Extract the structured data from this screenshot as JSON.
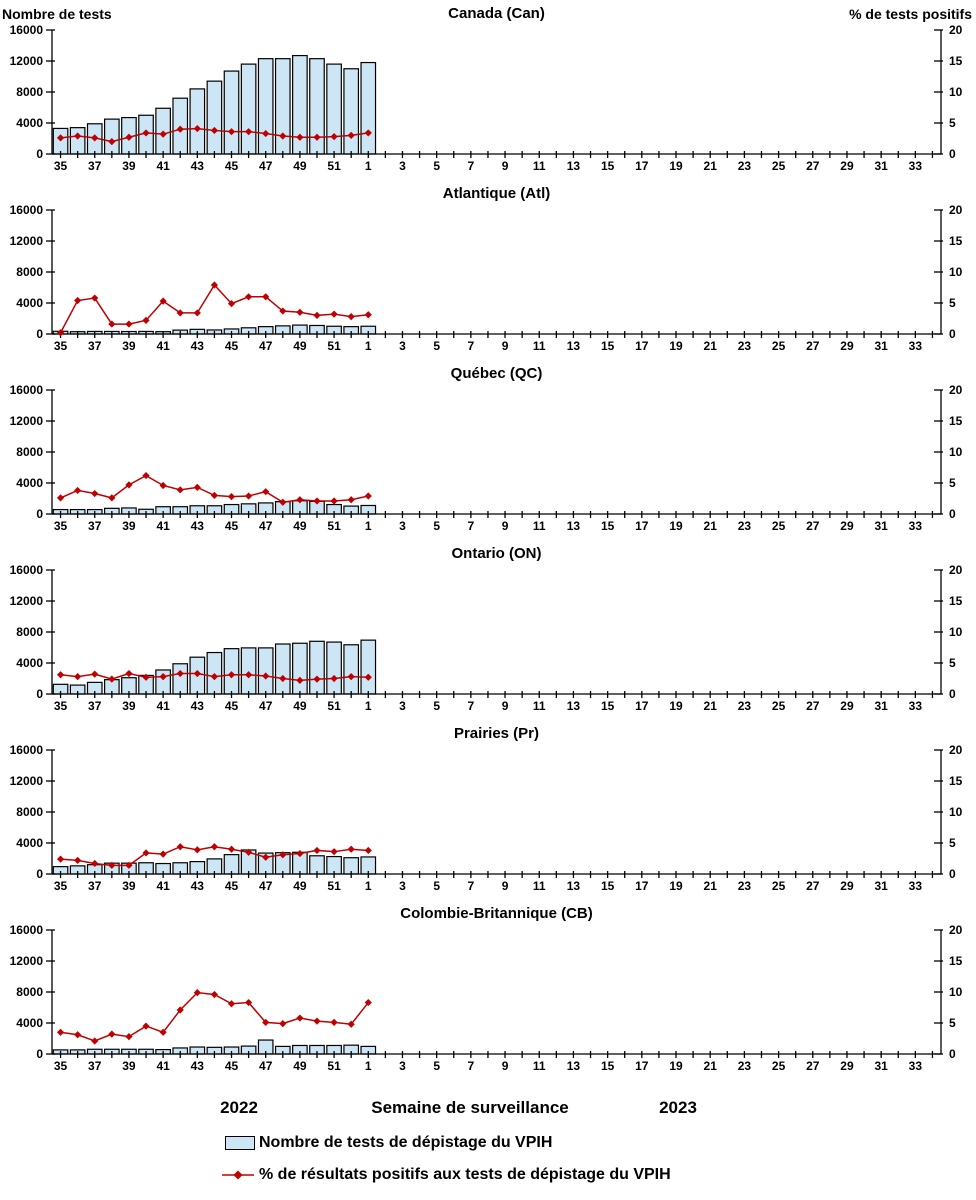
{
  "page": {
    "left_axis_header": "Nombre de tests",
    "right_axis_header": "% de tests positifs"
  },
  "footer": {
    "year_left": "2022",
    "x_axis_title": "Semaine de surveillance",
    "year_right": "2023"
  },
  "legend": {
    "bar_label": "Nombre de tests de dépistage du VPIH",
    "line_label": "% de résultats positifs aux tests de dépistage du VPIH"
  },
  "colors": {
    "bar_fill": "#CDE6F6",
    "bar_stroke": "#000000",
    "line": "#C00000",
    "axis": "#000000"
  },
  "axes": {
    "left_ticks": [
      0,
      4000,
      8000,
      12000,
      16000
    ],
    "right_ticks": [
      0,
      5,
      10,
      15,
      20
    ],
    "left_ylim": [
      0,
      16000
    ],
    "right_ylim": [
      0,
      20
    ],
    "weeks": [
      35,
      36,
      37,
      38,
      39,
      40,
      41,
      42,
      43,
      44,
      45,
      46,
      47,
      48,
      49,
      50,
      51,
      52,
      1,
      2,
      3,
      4,
      5,
      6,
      7,
      8,
      9,
      10,
      11,
      12,
      13,
      14,
      15,
      16,
      17,
      18,
      19,
      20,
      21,
      22,
      23,
      24,
      25,
      26,
      27,
      28,
      29,
      30,
      31,
      32,
      33,
      34
    ],
    "labeled_weeks": [
      35,
      37,
      39,
      41,
      43,
      45,
      47,
      49,
      51,
      1,
      3,
      5,
      7,
      9,
      11,
      13,
      15,
      17,
      19,
      21,
      23,
      25,
      27,
      29,
      31,
      33
    ]
  },
  "chart_data": [
    {
      "type": "bar",
      "title": "Canada (Can)",
      "x": [
        35,
        36,
        37,
        38,
        39,
        40,
        41,
        42,
        43,
        44,
        45,
        46,
        47,
        48,
        49,
        50,
        51,
        52,
        1
      ],
      "left_ylim": [
        0,
        16000
      ],
      "right_ylim": [
        0,
        20
      ],
      "series": [
        {
          "name": "Nombre de tests de dépistage du VPIH",
          "type": "bar",
          "axis": "left",
          "values": [
            3300,
            3400,
            3900,
            4500,
            4700,
            5000,
            5900,
            7200,
            8400,
            9400,
            10700,
            11600,
            12300,
            12300,
            12700,
            12300,
            11600,
            11000,
            11800
          ]
        },
        {
          "name": "% de résultats positifs aux tests de dépistage du VPIH",
          "type": "line",
          "axis": "right",
          "values": [
            2.6,
            2.9,
            2.6,
            2.0,
            2.7,
            3.4,
            3.2,
            4.0,
            4.1,
            3.8,
            3.6,
            3.6,
            3.3,
            2.9,
            2.7,
            2.7,
            2.8,
            3.0,
            3.4
          ]
        }
      ]
    },
    {
      "type": "bar",
      "title": "Atlantique (Atl)",
      "x": [
        35,
        36,
        37,
        38,
        39,
        40,
        41,
        42,
        43,
        44,
        45,
        46,
        47,
        48,
        49,
        50,
        51,
        52,
        1
      ],
      "left_ylim": [
        0,
        16000
      ],
      "right_ylim": [
        0,
        20
      ],
      "series": [
        {
          "name": "Nombre de tests de dépistage du VPIH",
          "type": "bar",
          "axis": "left",
          "values": [
            350,
            300,
            330,
            330,
            320,
            330,
            300,
            500,
            600,
            520,
            650,
            800,
            950,
            1050,
            1150,
            1100,
            1000,
            950,
            1000
          ]
        },
        {
          "name": "% de résultats positifs aux tests de dépistage du VPIH",
          "type": "line",
          "axis": "right",
          "values": [
            0.2,
            5.4,
            5.8,
            1.6,
            1.6,
            2.2,
            5.3,
            3.4,
            3.4,
            7.9,
            4.9,
            6.0,
            6.0,
            3.7,
            3.5,
            3.0,
            3.2,
            2.8,
            3.1
          ]
        }
      ]
    },
    {
      "type": "bar",
      "title": "Québec (QC)",
      "x": [
        35,
        36,
        37,
        38,
        39,
        40,
        41,
        42,
        43,
        44,
        45,
        46,
        47,
        48,
        49,
        50,
        51,
        52,
        1
      ],
      "left_ylim": [
        0,
        16000
      ],
      "right_ylim": [
        0,
        20
      ],
      "series": [
        {
          "name": "Nombre de tests de dépistage du VPIH",
          "type": "bar",
          "axis": "left",
          "values": [
            570,
            570,
            570,
            730,
            780,
            610,
            940,
            940,
            1060,
            1060,
            1220,
            1310,
            1430,
            1590,
            1710,
            1630,
            1220,
            1020,
            1100
          ]
        },
        {
          "name": "% de résultats positifs aux tests de dépistage du VPIH",
          "type": "line",
          "axis": "right",
          "values": [
            2.6,
            3.8,
            3.3,
            2.6,
            4.7,
            6.2,
            4.6,
            3.9,
            4.3,
            3.0,
            2.8,
            2.9,
            3.6,
            1.9,
            2.3,
            2.1,
            2.1,
            2.3,
            2.9
          ]
        }
      ]
    },
    {
      "type": "bar",
      "title": "Ontario (ON)",
      "x": [
        35,
        36,
        37,
        38,
        39,
        40,
        41,
        42,
        43,
        44,
        45,
        46,
        47,
        48,
        49,
        50,
        51,
        52,
        1
      ],
      "left_ylim": [
        0,
        16000
      ],
      "right_ylim": [
        0,
        20
      ],
      "series": [
        {
          "name": "Nombre de tests de dépistage du VPIH",
          "type": "bar",
          "axis": "left",
          "values": [
            1250,
            1150,
            1500,
            1850,
            2100,
            2400,
            3100,
            3900,
            4750,
            5350,
            5850,
            5950,
            5950,
            6450,
            6550,
            6800,
            6700,
            6350,
            6950
          ]
        },
        {
          "name": "% de résultats positifs aux tests de dépistage du VPIH",
          "type": "line",
          "axis": "right",
          "values": [
            3.1,
            2.8,
            3.2,
            2.4,
            3.3,
            2.7,
            2.8,
            3.3,
            3.3,
            2.8,
            3.1,
            3.1,
            2.9,
            2.5,
            2.2,
            2.4,
            2.5,
            2.8,
            2.7
          ]
        }
      ]
    },
    {
      "type": "bar",
      "title": "Prairies (Pr)",
      "x": [
        35,
        36,
        37,
        38,
        39,
        40,
        41,
        42,
        43,
        44,
        45,
        46,
        47,
        48,
        49,
        50,
        51,
        52,
        1
      ],
      "left_ylim": [
        0,
        16000
      ],
      "right_ylim": [
        0,
        20
      ],
      "series": [
        {
          "name": "Nombre de tests de dépistage du VPIH",
          "type": "bar",
          "axis": "left",
          "values": [
            950,
            1050,
            1200,
            1400,
            1400,
            1450,
            1350,
            1450,
            1600,
            1950,
            2500,
            3100,
            2700,
            2750,
            2800,
            2350,
            2250,
            2100,
            2200
          ]
        },
        {
          "name": "% de résultats positifs aux tests de dépistage du VPIH",
          "type": "line",
          "axis": "right",
          "values": [
            2.4,
            2.2,
            1.7,
            1.4,
            1.4,
            3.4,
            3.2,
            4.4,
            3.9,
            4.4,
            4.0,
            3.5,
            2.7,
            3.1,
            3.3,
            3.8,
            3.6,
            4.0,
            3.8
          ]
        }
      ]
    },
    {
      "type": "bar",
      "title": "Colombie-Britannique (CB)",
      "x": [
        35,
        36,
        37,
        38,
        39,
        40,
        41,
        42,
        43,
        44,
        45,
        46,
        47,
        48,
        49,
        50,
        51,
        52,
        1
      ],
      "left_ylim": [
        0,
        16000
      ],
      "right_ylim": [
        0,
        20
      ],
      "series": [
        {
          "name": "Nombre de tests de dépistage du VPIH",
          "type": "bar",
          "axis": "left",
          "values": [
            530,
            530,
            610,
            610,
            610,
            610,
            570,
            780,
            900,
            860,
            900,
            1020,
            1800,
            980,
            1100,
            1100,
            1100,
            1140,
            980
          ]
        },
        {
          "name": "% de résultats positifs aux tests de dépistage du VPIH",
          "type": "line",
          "axis": "right",
          "values": [
            3.5,
            3.1,
            2.1,
            3.2,
            2.8,
            4.5,
            3.5,
            7.1,
            9.9,
            9.6,
            8.1,
            8.3,
            5.1,
            4.9,
            5.8,
            5.3,
            5.1,
            4.8,
            8.3
          ]
        }
      ]
    }
  ]
}
